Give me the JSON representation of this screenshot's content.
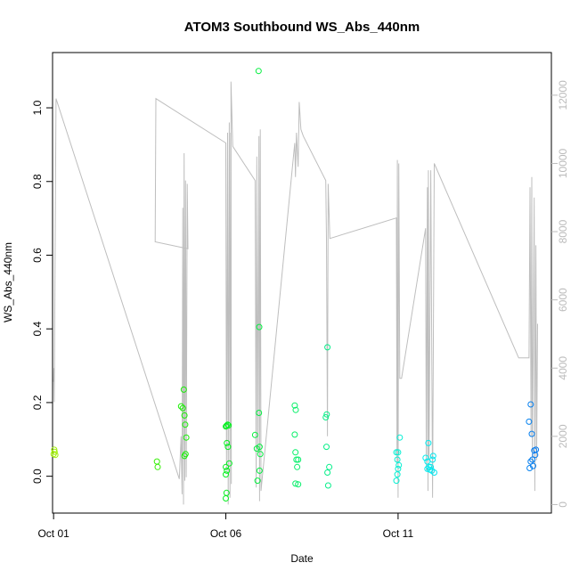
{
  "chart_data": {
    "type": "scatter",
    "title": "ATOM3 Southbound WS_Abs_440nm",
    "xlabel": "Date",
    "ylabel": "WS_Abs_440nm",
    "x_ticks": [
      {
        "label": "Oct 01",
        "day": 1
      },
      {
        "label": "Oct 06",
        "day": 6
      },
      {
        "label": "Oct 11",
        "day": 11
      }
    ],
    "y_ticks": [
      "0.0",
      "0.2",
      "0.4",
      "0.6",
      "0.8",
      "1.0"
    ],
    "right_ticks": [
      "0",
      "2000",
      "4000",
      "6000",
      "8000",
      "10000",
      "12000"
    ],
    "xlim": [
      0.97,
      15.45
    ],
    "ylim": [
      -0.1,
      1.15
    ],
    "right_ylim": [
      -250,
      13250
    ],
    "grid": false,
    "legend": "none",
    "colors": {
      "line": "#bebebe",
      "right_axis": "#bbbbbb"
    },
    "series": [
      {
        "kind": "points",
        "color_scale": "time",
        "points": [
          [
            1.0,
            0.06
          ],
          [
            1.02,
            0.072
          ],
          [
            1.03,
            0.066
          ],
          [
            1.05,
            0.058
          ],
          [
            4.0,
            0.04
          ],
          [
            4.02,
            0.025
          ],
          [
            4.7,
            0.19
          ],
          [
            4.75,
            0.185
          ],
          [
            4.78,
            0.235
          ],
          [
            4.8,
            0.165
          ],
          [
            4.82,
            0.14
          ],
          [
            4.85,
            0.105
          ],
          [
            4.83,
            0.06
          ],
          [
            4.8,
            0.055
          ],
          [
            6.0,
            0.135
          ],
          [
            6.02,
            0.137
          ],
          [
            6.05,
            0.14
          ],
          [
            6.08,
            0.138
          ],
          [
            6.03,
            0.09
          ],
          [
            6.06,
            0.08
          ],
          [
            6.1,
            0.035
          ],
          [
            6.0,
            0.025
          ],
          [
            6.03,
            0.015
          ],
          [
            6.0,
            0.005
          ],
          [
            6.02,
            -0.045
          ],
          [
            6.0,
            -0.06
          ],
          [
            6.85,
            0.112
          ],
          [
            6.9,
            0.075
          ],
          [
            6.92,
            -0.012
          ],
          [
            6.95,
            1.1
          ],
          [
            6.97,
            0.405
          ],
          [
            6.96,
            0.172
          ],
          [
            6.98,
            0.08
          ],
          [
            7.0,
            0.06
          ],
          [
            6.98,
            0.015
          ],
          [
            8.0,
            0.192
          ],
          [
            8.03,
            0.18
          ],
          [
            8.0,
            0.113
          ],
          [
            8.02,
            0.065
          ],
          [
            8.05,
            0.045
          ],
          [
            8.1,
            0.045
          ],
          [
            8.07,
            0.025
          ],
          [
            8.02,
            -0.02
          ],
          [
            8.1,
            -0.022
          ],
          [
            8.9,
            0.16
          ],
          [
            8.93,
            0.168
          ],
          [
            8.95,
            0.35
          ],
          [
            8.92,
            0.08
          ],
          [
            8.95,
            0.01
          ],
          [
            9.0,
            0.025
          ],
          [
            8.97,
            -0.025
          ],
          [
            10.95,
            0.065
          ],
          [
            11.0,
            0.065
          ],
          [
            11.05,
            0.105
          ],
          [
            10.98,
            0.045
          ],
          [
            11.02,
            0.03
          ],
          [
            11.0,
            0.02
          ],
          [
            10.98,
            0.005
          ],
          [
            10.95,
            -0.012
          ],
          [
            11.8,
            0.05
          ],
          [
            11.85,
            0.04
          ],
          [
            11.88,
            0.09
          ],
          [
            11.9,
            0.025
          ],
          [
            11.95,
            0.025
          ],
          [
            12.0,
            0.045
          ],
          [
            12.02,
            0.055
          ],
          [
            11.92,
            0.018
          ],
          [
            11.98,
            0.015
          ],
          [
            12.05,
            0.01
          ],
          [
            11.85,
            0.02
          ],
          [
            14.85,
            0.195
          ],
          [
            14.8,
            0.148
          ],
          [
            14.88,
            0.115
          ],
          [
            14.9,
            0.045
          ],
          [
            14.85,
            0.04
          ],
          [
            14.95,
            0.07
          ],
          [
            15.0,
            0.072
          ],
          [
            14.98,
            0.058
          ],
          [
            14.92,
            0.028
          ],
          [
            14.82,
            0.022
          ]
        ]
      },
      {
        "kind": "line",
        "axis": "right",
        "points": [
          [
            1.0,
            3600
          ],
          [
            1.01,
            4000
          ],
          [
            1.02,
            3000
          ],
          [
            1.07,
            11900
          ],
          [
            4.65,
            750
          ],
          [
            4.7,
            2000
          ],
          [
            4.73,
            300
          ],
          [
            4.75,
            8700
          ],
          [
            4.77,
            0
          ],
          [
            4.79,
            10300
          ],
          [
            4.81,
            700
          ],
          [
            4.83,
            9500
          ],
          [
            4.85,
            800
          ],
          [
            4.88,
            9400
          ],
          [
            4.9,
            7500
          ],
          [
            3.95,
            7700
          ],
          [
            3.97,
            11900
          ],
          [
            6.0,
            10600
          ],
          [
            6.02,
            1000
          ],
          [
            6.05,
            10900
          ],
          [
            6.07,
            0
          ],
          [
            6.1,
            11200
          ],
          [
            6.12,
            200
          ],
          [
            6.14,
            10900
          ],
          [
            6.16,
            600
          ],
          [
            6.15,
            12400
          ],
          [
            6.2,
            10500
          ],
          [
            6.85,
            9500
          ],
          [
            6.88,
            500
          ],
          [
            6.9,
            10200
          ],
          [
            6.93,
            1500
          ],
          [
            6.96,
            10800
          ],
          [
            6.98,
            100
          ],
          [
            7.0,
            11000
          ],
          [
            7.02,
            400
          ],
          [
            8.0,
            10600
          ],
          [
            8.02,
            9600
          ],
          [
            8.05,
            10900
          ],
          [
            8.1,
            9900
          ],
          [
            8.13,
            11800
          ],
          [
            8.18,
            11000
          ],
          [
            8.25,
            10800
          ],
          [
            8.9,
            9500
          ],
          [
            8.92,
            7800
          ],
          [
            8.95,
            2000
          ],
          [
            8.97,
            9400
          ],
          [
            9.0,
            8400
          ],
          [
            9.02,
            7800
          ],
          [
            10.95,
            8400
          ],
          [
            10.97,
            1200
          ],
          [
            10.98,
            10100
          ],
          [
            11.0,
            200
          ],
          [
            11.02,
            10000
          ],
          [
            11.05,
            3700
          ],
          [
            11.1,
            3700
          ],
          [
            11.8,
            8100
          ],
          [
            11.82,
            1000
          ],
          [
            11.85,
            9300
          ],
          [
            11.87,
            400
          ],
          [
            11.88,
            9800
          ],
          [
            11.9,
            1300
          ],
          [
            11.95,
            9800
          ],
          [
            12.0,
            200
          ],
          [
            12.05,
            10000
          ],
          [
            14.5,
            4300
          ],
          [
            14.8,
            4300
          ],
          [
            14.83,
            9300
          ],
          [
            14.86,
            2000
          ],
          [
            14.88,
            9600
          ],
          [
            14.9,
            1200
          ],
          [
            14.95,
            9000
          ],
          [
            14.97,
            400
          ],
          [
            15.0,
            7600
          ],
          [
            15.02,
            1300
          ],
          [
            15.05,
            5300
          ]
        ]
      }
    ]
  }
}
